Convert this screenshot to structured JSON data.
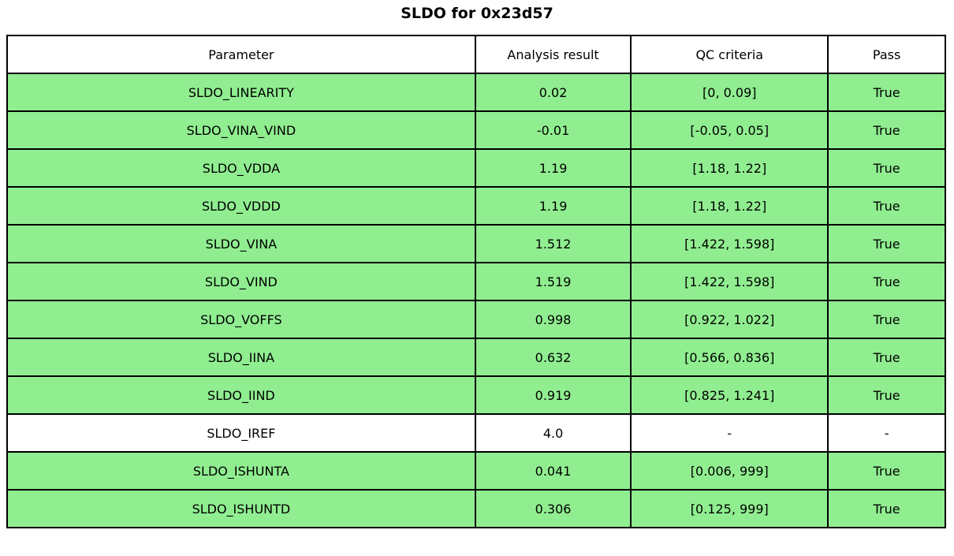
{
  "title": "SLDO for 0x23d57",
  "colors": {
    "pass_green": "#90EE90",
    "plain_white": "#ffffff",
    "border": "#000000"
  },
  "table": {
    "headers": [
      "Parameter",
      "Analysis result",
      "QC criteria",
      "Pass"
    ],
    "rows": [
      {
        "parameter": "SLDO_LINEARITY",
        "result": "0.02",
        "criteria": "[0, 0.09]",
        "pass": "True",
        "highlighted": true
      },
      {
        "parameter": "SLDO_VINA_VIND",
        "result": "-0.01",
        "criteria": "[-0.05, 0.05]",
        "pass": "True",
        "highlighted": true
      },
      {
        "parameter": "SLDO_VDDA",
        "result": "1.19",
        "criteria": "[1.18, 1.22]",
        "pass": "True",
        "highlighted": true
      },
      {
        "parameter": "SLDO_VDDD",
        "result": "1.19",
        "criteria": "[1.18, 1.22]",
        "pass": "True",
        "highlighted": true
      },
      {
        "parameter": "SLDO_VINA",
        "result": "1.512",
        "criteria": "[1.422, 1.598]",
        "pass": "True",
        "highlighted": true
      },
      {
        "parameter": "SLDO_VIND",
        "result": "1.519",
        "criteria": "[1.422, 1.598]",
        "pass": "True",
        "highlighted": true
      },
      {
        "parameter": "SLDO_VOFFS",
        "result": "0.998",
        "criteria": "[0.922, 1.022]",
        "pass": "True",
        "highlighted": true
      },
      {
        "parameter": "SLDO_IINA",
        "result": "0.632",
        "criteria": "[0.566, 0.836]",
        "pass": "True",
        "highlighted": true
      },
      {
        "parameter": "SLDO_IIND",
        "result": "0.919",
        "criteria": "[0.825, 1.241]",
        "pass": "True",
        "highlighted": true
      },
      {
        "parameter": "SLDO_IREF",
        "result": "4.0",
        "criteria": "-",
        "pass": "-",
        "highlighted": false
      },
      {
        "parameter": "SLDO_ISHUNTA",
        "result": "0.041",
        "criteria": "[0.006, 999]",
        "pass": "True",
        "highlighted": true
      },
      {
        "parameter": "SLDO_ISHUNTD",
        "result": "0.306",
        "criteria": "[0.125, 999]",
        "pass": "True",
        "highlighted": true
      }
    ]
  }
}
